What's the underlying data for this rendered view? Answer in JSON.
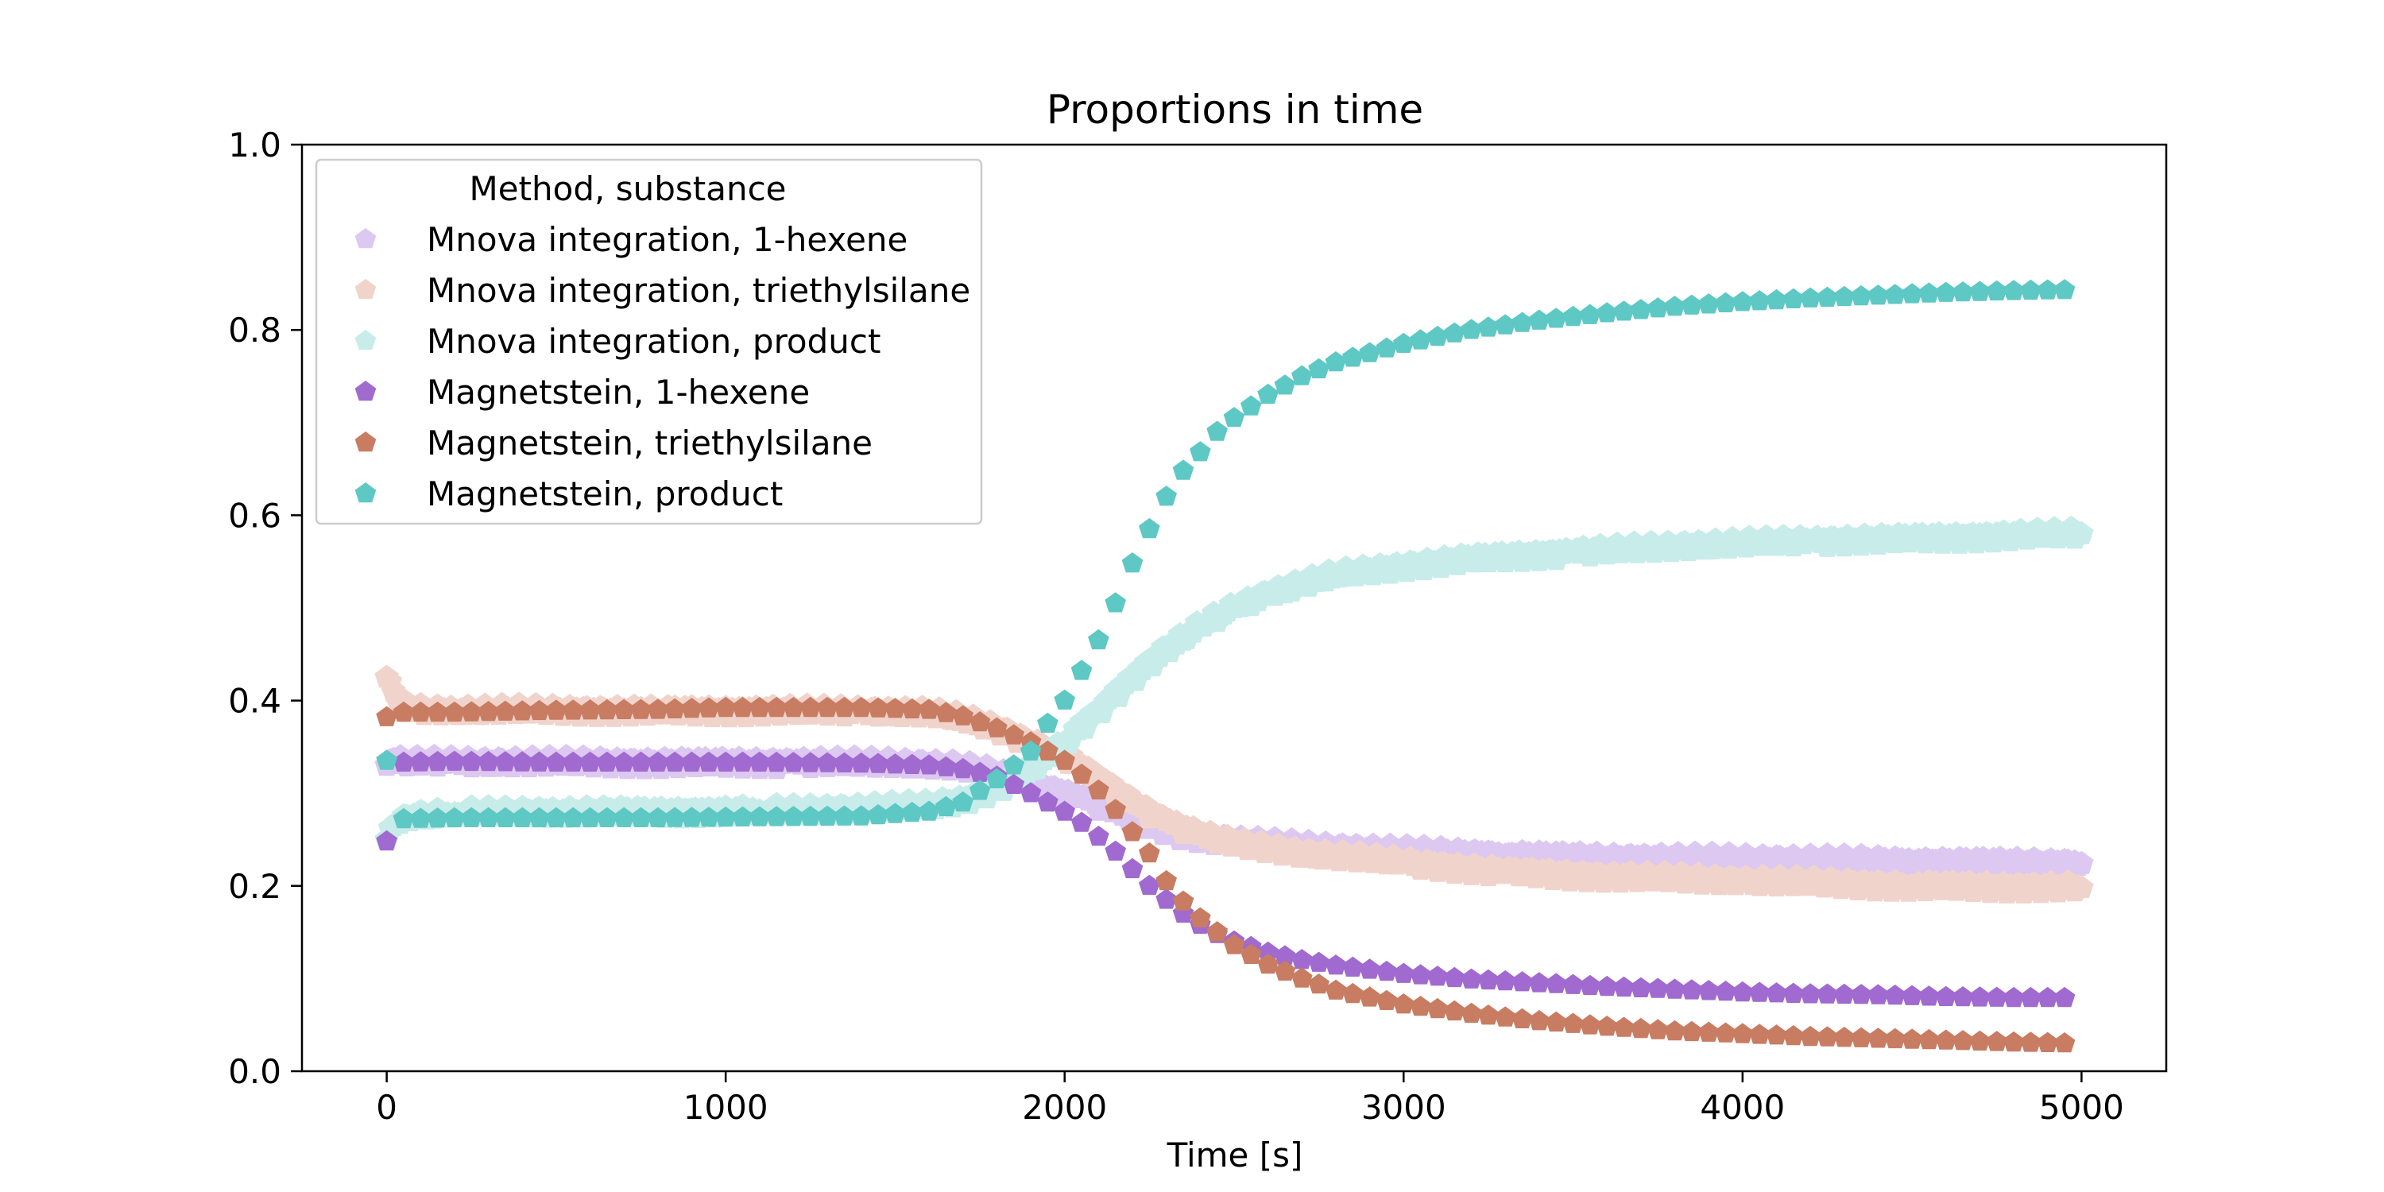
{
  "chart_data": {
    "type": "scatter",
    "title": "Proportions in time",
    "xlabel": "Time [s]",
    "ylabel": "",
    "xlim": [
      -250,
      5250
    ],
    "ylim": [
      0.0,
      1.0
    ],
    "xticks": [
      0,
      1000,
      2000,
      3000,
      4000,
      5000
    ],
    "xtick_labels": [
      "0",
      "1000",
      "2000",
      "3000",
      "4000",
      "5000"
    ],
    "yticks": [
      0.0,
      0.2,
      0.4,
      0.6,
      0.8,
      1.0
    ],
    "ytick_labels": [
      "0.0",
      "0.2",
      "0.4",
      "0.6",
      "0.8",
      "1.0"
    ],
    "grid": false,
    "marker": "pentagon",
    "legend": {
      "title": "Method, substance",
      "placement": "upper-left"
    },
    "series": [
      {
        "name": "Mnova integration, 1-hexene",
        "color": "#dcc8f0",
        "points": [
          [
            0,
            0.33
          ],
          [
            10,
            0.335
          ],
          [
            50,
            0.333
          ],
          [
            200,
            0.333
          ],
          [
            500,
            0.333
          ],
          [
            800,
            0.333
          ],
          [
            1200,
            0.333
          ],
          [
            1500,
            0.332
          ],
          [
            1650,
            0.33
          ],
          [
            1750,
            0.325
          ],
          [
            1850,
            0.315
          ],
          [
            1950,
            0.305
          ],
          [
            2050,
            0.295
          ],
          [
            2150,
            0.28
          ],
          [
            2250,
            0.265
          ],
          [
            2350,
            0.255
          ],
          [
            2500,
            0.248
          ],
          [
            2700,
            0.242
          ],
          [
            3000,
            0.237
          ],
          [
            3300,
            0.233
          ],
          [
            3600,
            0.23
          ],
          [
            4000,
            0.228
          ],
          [
            4500,
            0.226
          ],
          [
            5000,
            0.224
          ]
        ]
      },
      {
        "name": "Mnova integration, triethylsilane",
        "color": "#f0d4cc",
        "points": [
          [
            0,
            0.425
          ],
          [
            10,
            0.42
          ],
          [
            20,
            0.41
          ],
          [
            40,
            0.395
          ],
          [
            80,
            0.39
          ],
          [
            200,
            0.389
          ],
          [
            500,
            0.389
          ],
          [
            800,
            0.389
          ],
          [
            1100,
            0.389
          ],
          [
            1400,
            0.388
          ],
          [
            1600,
            0.386
          ],
          [
            1700,
            0.38
          ],
          [
            1800,
            0.37
          ],
          [
            1900,
            0.355
          ],
          [
            2000,
            0.34
          ],
          [
            2100,
            0.315
          ],
          [
            2200,
            0.29
          ],
          [
            2300,
            0.27
          ],
          [
            2400,
            0.255
          ],
          [
            2500,
            0.245
          ],
          [
            2700,
            0.235
          ],
          [
            3000,
            0.225
          ],
          [
            3300,
            0.215
          ],
          [
            3600,
            0.21
          ],
          [
            4000,
            0.205
          ],
          [
            4500,
            0.2
          ],
          [
            5000,
            0.198
          ]
        ]
      },
      {
        "name": "Mnova integration, product",
        "color": "#c8ecea",
        "points": [
          [
            0,
            0.25
          ],
          [
            20,
            0.265
          ],
          [
            60,
            0.275
          ],
          [
            200,
            0.278
          ],
          [
            500,
            0.28
          ],
          [
            800,
            0.28
          ],
          [
            1100,
            0.281
          ],
          [
            1400,
            0.283
          ],
          [
            1600,
            0.286
          ],
          [
            1700,
            0.292
          ],
          [
            1800,
            0.305
          ],
          [
            1900,
            0.325
          ],
          [
            2000,
            0.355
          ],
          [
            2100,
            0.39
          ],
          [
            2200,
            0.425
          ],
          [
            2300,
            0.455
          ],
          [
            2400,
            0.48
          ],
          [
            2500,
            0.5
          ],
          [
            2600,
            0.515
          ],
          [
            2700,
            0.525
          ],
          [
            2800,
            0.535
          ],
          [
            3000,
            0.545
          ],
          [
            3200,
            0.553
          ],
          [
            3500,
            0.56
          ],
          [
            3800,
            0.566
          ],
          [
            4200,
            0.572
          ],
          [
            4600,
            0.576
          ],
          [
            5000,
            0.58
          ]
        ]
      },
      {
        "name": "Magnetstein, 1-hexene",
        "color": "#a06ad0",
        "points": [
          [
            0,
            0.248
          ],
          [
            50,
            0.333
          ],
          [
            200,
            0.334
          ],
          [
            500,
            0.333
          ],
          [
            800,
            0.333
          ],
          [
            1100,
            0.333
          ],
          [
            1400,
            0.332
          ],
          [
            1600,
            0.33
          ],
          [
            1700,
            0.326
          ],
          [
            1800,
            0.318
          ],
          [
            1900,
            0.3
          ],
          [
            1950,
            0.29
          ],
          [
            2000,
            0.28
          ],
          [
            2050,
            0.268
          ],
          [
            2100,
            0.253
          ],
          [
            2150,
            0.237
          ],
          [
            2200,
            0.218
          ],
          [
            2250,
            0.2
          ],
          [
            2300,
            0.185
          ],
          [
            2350,
            0.17
          ],
          [
            2400,
            0.158
          ],
          [
            2450,
            0.148
          ],
          [
            2500,
            0.14
          ],
          [
            2600,
            0.128
          ],
          [
            2700,
            0.12
          ],
          [
            2800,
            0.114
          ],
          [
            3000,
            0.105
          ],
          [
            3200,
            0.099
          ],
          [
            3400,
            0.095
          ],
          [
            3600,
            0.091
          ],
          [
            3800,
            0.088
          ],
          [
            4000,
            0.085
          ],
          [
            4200,
            0.083
          ],
          [
            4400,
            0.082
          ],
          [
            4600,
            0.08
          ],
          [
            4800,
            0.079
          ],
          [
            4950,
            0.079
          ]
        ]
      },
      {
        "name": "Magnetstein, triethylsilane",
        "color": "#c87c62",
        "points": [
          [
            0,
            0.382
          ],
          [
            50,
            0.387
          ],
          [
            200,
            0.387
          ],
          [
            500,
            0.389
          ],
          [
            800,
            0.39
          ],
          [
            1000,
            0.392
          ],
          [
            1200,
            0.392
          ],
          [
            1400,
            0.392
          ],
          [
            1600,
            0.39
          ],
          [
            1700,
            0.383
          ],
          [
            1800,
            0.37
          ],
          [
            1900,
            0.355
          ],
          [
            1950,
            0.345
          ],
          [
            2000,
            0.335
          ],
          [
            2050,
            0.32
          ],
          [
            2100,
            0.303
          ],
          [
            2150,
            0.282
          ],
          [
            2200,
            0.258
          ],
          [
            2250,
            0.235
          ],
          [
            2300,
            0.205
          ],
          [
            2350,
            0.183
          ],
          [
            2400,
            0.165
          ],
          [
            2450,
            0.15
          ],
          [
            2500,
            0.136
          ],
          [
            2600,
            0.115
          ],
          [
            2700,
            0.1
          ],
          [
            2800,
            0.087
          ],
          [
            3000,
            0.072
          ],
          [
            3200,
            0.062
          ],
          [
            3400,
            0.054
          ],
          [
            3600,
            0.048
          ],
          [
            3800,
            0.043
          ],
          [
            4000,
            0.04
          ],
          [
            4200,
            0.037
          ],
          [
            4400,
            0.035
          ],
          [
            4600,
            0.033
          ],
          [
            4800,
            0.031
          ],
          [
            4950,
            0.03
          ]
        ]
      },
      {
        "name": "Magnetstein, product",
        "color": "#5ec8c4",
        "points": [
          [
            0,
            0.335
          ],
          [
            50,
            0.272
          ],
          [
            200,
            0.273
          ],
          [
            500,
            0.273
          ],
          [
            800,
            0.273
          ],
          [
            1100,
            0.274
          ],
          [
            1400,
            0.275
          ],
          [
            1600,
            0.28
          ],
          [
            1700,
            0.29
          ],
          [
            1800,
            0.315
          ],
          [
            1900,
            0.345
          ],
          [
            1950,
            0.375
          ],
          [
            2000,
            0.4
          ],
          [
            2050,
            0.432
          ],
          [
            2100,
            0.465
          ],
          [
            2150,
            0.505
          ],
          [
            2200,
            0.548
          ],
          [
            2250,
            0.585
          ],
          [
            2300,
            0.62
          ],
          [
            2350,
            0.648
          ],
          [
            2400,
            0.668
          ],
          [
            2450,
            0.69
          ],
          [
            2500,
            0.705
          ],
          [
            2600,
            0.73
          ],
          [
            2700,
            0.75
          ],
          [
            2800,
            0.765
          ],
          [
            2900,
            0.775
          ],
          [
            3000,
            0.785
          ],
          [
            3200,
            0.8
          ],
          [
            3400,
            0.81
          ],
          [
            3600,
            0.818
          ],
          [
            3800,
            0.825
          ],
          [
            4000,
            0.83
          ],
          [
            4200,
            0.834
          ],
          [
            4400,
            0.837
          ],
          [
            4600,
            0.84
          ],
          [
            4800,
            0.842
          ],
          [
            4950,
            0.843
          ]
        ]
      }
    ]
  }
}
